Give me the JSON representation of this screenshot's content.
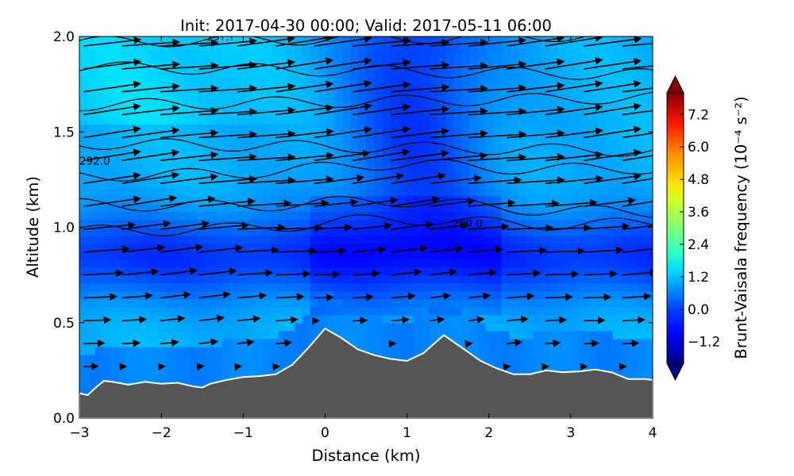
{
  "chart_data": {
    "type": "heatmap",
    "title": "Init: 2017-04-30 00:00; Valid: 2017-05-11 06:00",
    "xlabel": "Distance (km)",
    "ylabel": "Altitude (km)",
    "xlim": [
      -3,
      4
    ],
    "ylim": [
      0,
      2
    ],
    "x_ticks": [
      "−3",
      "−2",
      "−1",
      "0",
      "1",
      "2",
      "3",
      "4"
    ],
    "y_ticks": [
      "0.0",
      "0.5",
      "1.0",
      "1.5",
      "2.0"
    ],
    "colorbar": {
      "label": "Brunt-Vaisala frequency (10⁻⁴ s⁻²)",
      "ticks": [
        "7.2",
        "6.0",
        "4.8",
        "3.6",
        "2.4",
        "1.2",
        "0.0",
        "−1.2"
      ],
      "range": [
        -2.0,
        8.0
      ],
      "colormap": "jet",
      "extend": "both"
    },
    "terrain": {
      "color": "#555555",
      "x": [
        -3,
        -2.9,
        -2.8,
        -2.7,
        -2.6,
        -2.4,
        -2.2,
        -2.0,
        -1.8,
        -1.6,
        -1.5,
        -1.4,
        -1.2,
        -1.0,
        -0.8,
        -0.6,
        -0.4,
        -0.2,
        0.0,
        0.2,
        0.4,
        0.6,
        0.8,
        1.0,
        1.2,
        1.45,
        1.7,
        1.9,
        2.1,
        2.3,
        2.5,
        2.7,
        2.9,
        3.1,
        3.3,
        3.5,
        3.7,
        3.9,
        4.0
      ],
      "altitude_km": [
        0.13,
        0.12,
        0.16,
        0.195,
        0.19,
        0.175,
        0.19,
        0.18,
        0.185,
        0.165,
        0.16,
        0.18,
        0.2,
        0.215,
        0.22,
        0.23,
        0.28,
        0.37,
        0.47,
        0.42,
        0.36,
        0.33,
        0.31,
        0.3,
        0.34,
        0.435,
        0.36,
        0.3,
        0.26,
        0.23,
        0.23,
        0.25,
        0.24,
        0.245,
        0.255,
        0.24,
        0.205,
        0.205,
        0.2
      ]
    },
    "theta_contours": [
      {
        "label": "292.0",
        "x": -3.0,
        "y": 1.35
      },
      {
        "label": "290.0",
        "x": 1.55,
        "y": 1.02
      },
      {
        "label": "29?.?",
        "x": -1.45,
        "y": 2.0
      }
    ],
    "wind_vectors": "quiver field of horizontal/vertical wind, mostly eastward, stronger aloft"
  }
}
